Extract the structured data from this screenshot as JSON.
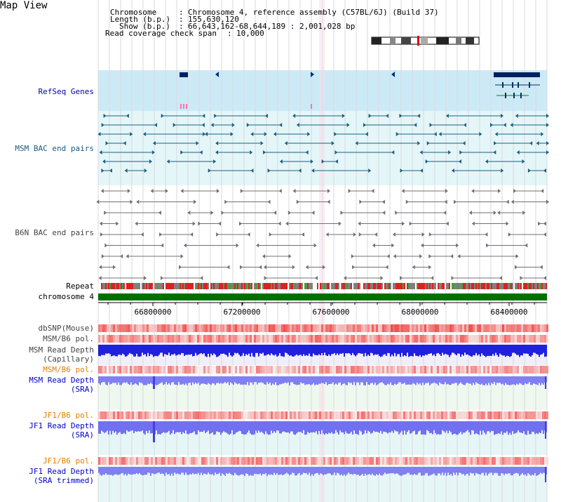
{
  "page_title": "Map View",
  "info": {
    "chromosome_label": "Chromosome",
    "chromosome_value": "Chromosome 4, reference assembly (C57BL/6J) (Build 37)",
    "length_label": "Length (b.p.)",
    "length_value": "155,630,120",
    "show_label": "Show (b.p.)",
    "show_value": "66,643,162-68,644,189 : 2,001,028 bp",
    "coverage_label": "Read coverage check span",
    "coverage_value": "10,000"
  },
  "tracks": {
    "refseq": "RefSeq Genes",
    "msm_bac": "MSM BAC end pairs",
    "b6n_bac": "B6N BAC end pairs",
    "repeat": "Repeat",
    "chromosome": "chromosome 4",
    "dbsnp": "dbSNP(Mouse)",
    "msm_b6_pol_1": "MSM/B6 pol.",
    "msm_depth_cap_1": "MSM Read Depth",
    "msm_depth_cap_2": "(Capillary)",
    "msm_b6_pol_2": "MSM/B6 pol.",
    "msm_depth_sra_1": "MSM Read Depth",
    "msm_depth_sra_2": "(SRA)",
    "jf1_b6_pol_1": "JF1/B6 pol.",
    "jf1_depth_sra_1": "JF1 Read Depth",
    "jf1_depth_sra_2": "(SRA)",
    "jf1_b6_pol_2": "JF1/B6 pol.",
    "jf1_depth_trim_1": "JF1 Read Depth",
    "jf1_depth_trim_2": "(SRA trimmed)"
  },
  "axis": {
    "ticks": [
      "66800000",
      "67200000",
      "67600000",
      "68000000",
      "68400000"
    ]
  },
  "colors": {
    "refseq_bg": "#cceaf6",
    "msm_bac_bg": "#e4f6f8",
    "b6n_bac_bg": "#ffffff",
    "chromosome": "#007000",
    "snp_red": "#e03030",
    "depth_blue": "#2020e0",
    "depth_light_blue": "#8080f0"
  }
}
